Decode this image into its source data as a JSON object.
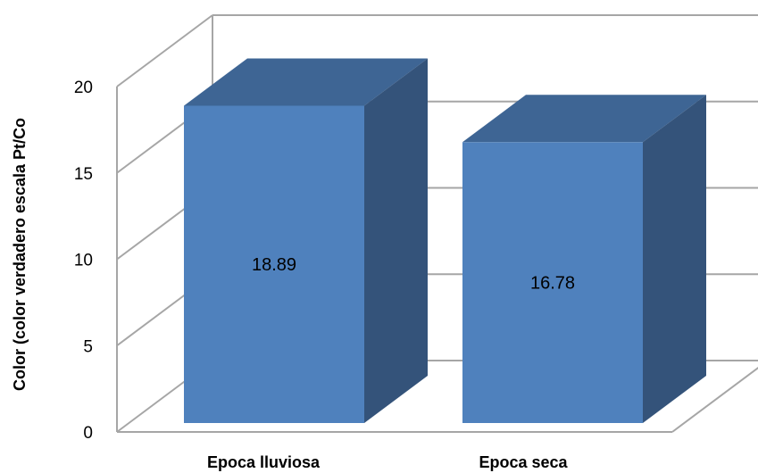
{
  "chart_data": {
    "type": "bar",
    "style": "3d-column",
    "categories": [
      "Epoca lluviosa",
      "Epoca seca"
    ],
    "values": [
      18.89,
      16.78
    ],
    "data_labels": [
      "18.89",
      "16.78"
    ],
    "ylabel": "Color (color verdadero escala Pt/Co",
    "ylim": [
      0,
      20
    ],
    "yticks": [
      0,
      5,
      10,
      15,
      20
    ],
    "grid": true,
    "colors": {
      "front": "#4f81bd",
      "side": "#34537a",
      "top": "#3e6594",
      "grid": "#a6a6a6"
    }
  }
}
